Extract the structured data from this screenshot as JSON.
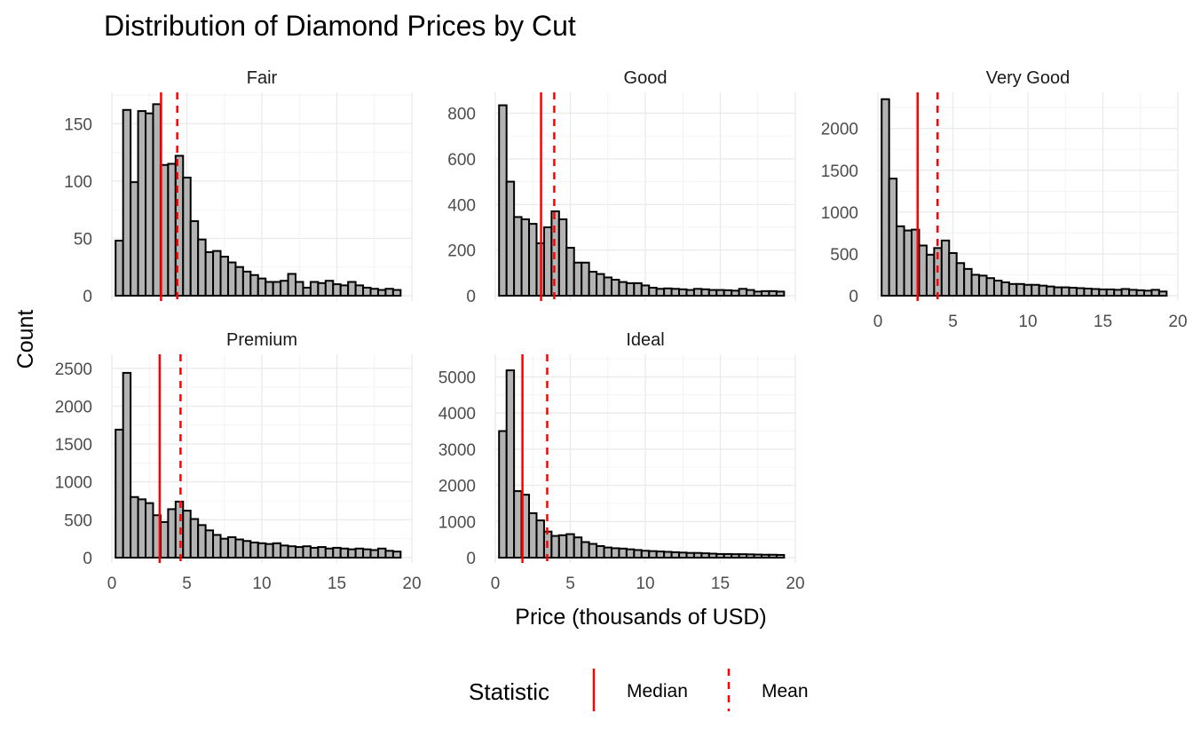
{
  "chart_data": {
    "type": "bar",
    "title": "Distribution of Diamond Prices by Cut",
    "xlabel": "Price (thousands of USD)",
    "ylabel": "Count",
    "bin_width": 0.5,
    "bin_start": 0.25,
    "xlim": [
      0,
      20
    ],
    "x_ticks": [
      0,
      5,
      10,
      15,
      20
    ],
    "legend": {
      "title": "Statistic",
      "position": "bottom",
      "entries": [
        {
          "label": "Median",
          "linetype": "solid",
          "color": "#ff0000"
        },
        {
          "label": "Mean",
          "linetype": "dashed",
          "color": "#ff0000"
        }
      ]
    },
    "panels": [
      {
        "name": "Fair",
        "ylim": [
          0,
          175
        ],
        "y_ticks": [
          0,
          50,
          100,
          150
        ],
        "median": 3.28,
        "mean": 4.36,
        "values": [
          48,
          162,
          99,
          161,
          159,
          167,
          114,
          115,
          122,
          103,
          65,
          49,
          38,
          39,
          34,
          29,
          25,
          21,
          18,
          15,
          12,
          12,
          13,
          19,
          12,
          7,
          12,
          11,
          13,
          10,
          9,
          12,
          9,
          7,
          6,
          5,
          6,
          5
        ]
      },
      {
        "name": "Good",
        "ylim": [
          0,
          880
        ],
        "y_ticks": [
          0,
          200,
          400,
          600,
          800
        ],
        "median": 3.05,
        "mean": 3.93,
        "values": [
          835,
          500,
          345,
          335,
          315,
          230,
          300,
          370,
          335,
          210,
          145,
          145,
          105,
          95,
          80,
          70,
          60,
          55,
          55,
          45,
          35,
          30,
          32,
          30,
          28,
          25,
          30,
          28,
          25,
          25,
          24,
          22,
          30,
          25,
          18,
          20,
          20,
          18
        ]
      },
      {
        "name": "Very Good",
        "ylim": [
          0,
          2400
        ],
        "y_ticks": [
          0,
          500,
          1000,
          1500,
          2000
        ],
        "median": 2.65,
        "mean": 3.98,
        "values": [
          2350,
          1400,
          830,
          780,
          790,
          600,
          490,
          570,
          660,
          510,
          390,
          320,
          250,
          240,
          210,
          180,
          160,
          140,
          140,
          130,
          130,
          120,
          110,
          100,
          100,
          95,
          90,
          85,
          80,
          75,
          75,
          70,
          80,
          70,
          65,
          60,
          70,
          50
        ]
      },
      {
        "name": "Premium",
        "ylim": [
          0,
          2650
        ],
        "y_ticks": [
          0,
          500,
          1000,
          1500,
          2000,
          2500
        ],
        "median": 3.19,
        "mean": 4.58,
        "values": [
          1690,
          2440,
          800,
          770,
          720,
          560,
          470,
          640,
          740,
          620,
          510,
          430,
          360,
          300,
          250,
          270,
          240,
          220,
          200,
          190,
          180,
          190,
          160,
          150,
          140,
          150,
          130,
          140,
          120,
          130,
          120,
          110,
          120,
          110,
          100,
          120,
          90,
          80
        ]
      },
      {
        "name": "Ideal",
        "ylim": [
          0,
          5550
        ],
        "y_ticks": [
          0,
          1000,
          2000,
          3000,
          4000,
          5000
        ],
        "median": 1.81,
        "mean": 3.46,
        "values": [
          3500,
          5180,
          1840,
          1740,
          1230,
          1030,
          720,
          600,
          620,
          650,
          560,
          430,
          380,
          320,
          280,
          260,
          250,
          230,
          210,
          190,
          180,
          170,
          160,
          150,
          140,
          130,
          130,
          120,
          110,
          100,
          100,
          95,
          95,
          90,
          85,
          80,
          80,
          75
        ]
      }
    ]
  }
}
